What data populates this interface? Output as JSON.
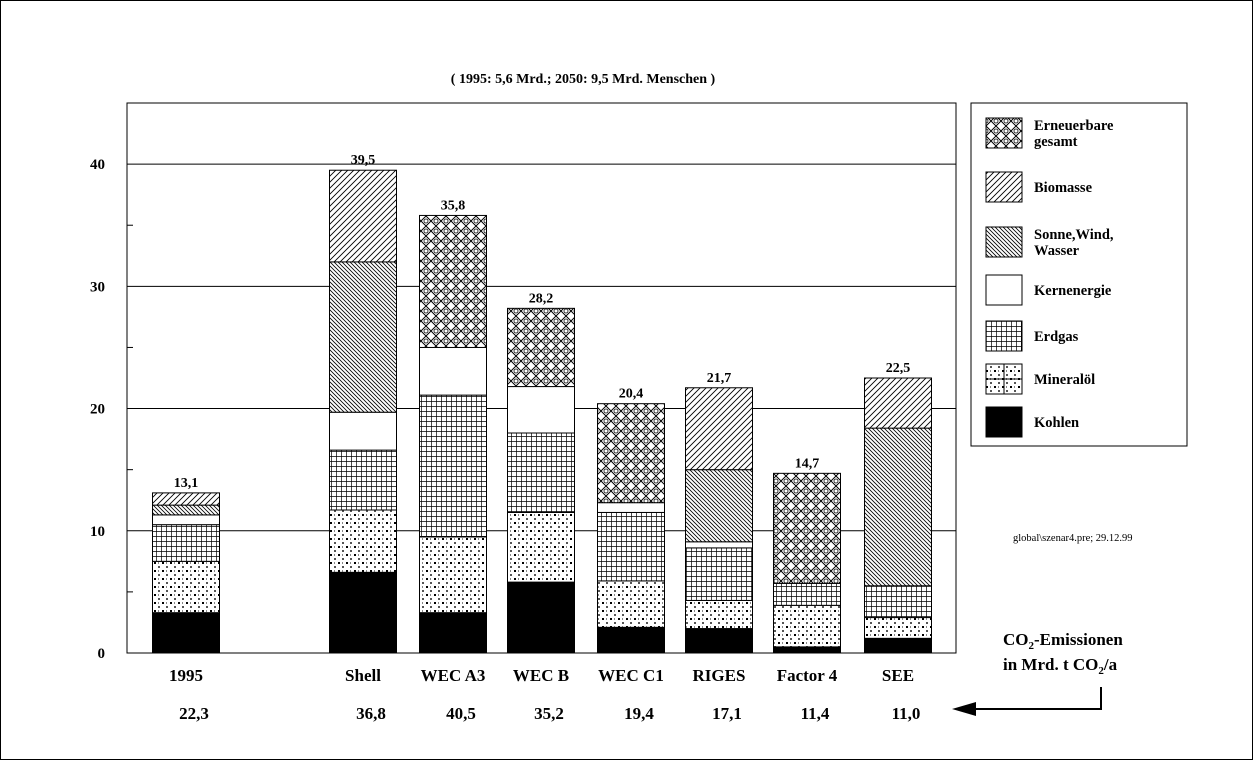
{
  "chart_data": {
    "type": "bar",
    "stacked": true,
    "subtitle": "( 1995: 5,6 Mrd.; 2050: 9,5 Mrd. Menschen )",
    "ylim": [
      0,
      45
    ],
    "yticks": [
      0,
      10,
      20,
      30,
      40
    ],
    "grid": true,
    "legend_position": "right",
    "categories": [
      "1995",
      "Shell",
      "WEC A3",
      "WEC B",
      "WEC C1",
      "RIGES",
      "Factor 4",
      "SEE"
    ],
    "totals": [
      "13,1",
      "39,5",
      "35,8",
      "28,2",
      "20,4",
      "21,7",
      "14,7",
      "22,5"
    ],
    "co2_values": [
      "22,3",
      "36,8",
      "40,5",
      "35,2",
      "19,4",
      "17,1",
      "11,4",
      "11,0"
    ],
    "series": [
      {
        "name": "Kohlen",
        "pattern": "solid",
        "values": [
          3.3,
          6.6,
          3.3,
          5.8,
          2.1,
          2.0,
          0.5,
          1.2
        ]
      },
      {
        "name": "Mineralöl",
        "pattern": "dots",
        "values": [
          4.2,
          5.1,
          6.2,
          5.7,
          3.8,
          2.3,
          3.4,
          1.7
        ]
      },
      {
        "name": "Erdgas",
        "pattern": "grid",
        "values": [
          3.0,
          4.9,
          11.6,
          6.5,
          5.6,
          4.3,
          1.8,
          2.6
        ]
      },
      {
        "name": "Kernenergie",
        "pattern": "white",
        "values": [
          0.8,
          3.1,
          3.9,
          3.8,
          0.8,
          0.5,
          0,
          0
        ]
      },
      {
        "name": "Sonne,Wind,\nWasser",
        "pattern": "diag-fine",
        "values": [
          0.8,
          12.3,
          0,
          0,
          0,
          5.9,
          0,
          12.9
        ]
      },
      {
        "name": "Biomasse",
        "pattern": "diag",
        "values": [
          1.0,
          7.5,
          0,
          0,
          0,
          6.7,
          0,
          4.1
        ]
      },
      {
        "name": "Erneuerbare\ngesamt",
        "pattern": "cross",
        "values": [
          0,
          0,
          10.8,
          6.4,
          8.1,
          0,
          9.0,
          0
        ]
      }
    ],
    "legend_order": [
      "Erneuerbare\ngesamt",
      "Biomasse",
      "Sonne,Wind,\nWasser",
      "Kernenergie",
      "Erdgas",
      "Mineralöl",
      "Kohlen"
    ],
    "annotation": "global\\szenar4.pre; 29.12.99",
    "co2_label_line1_prefix": "CO",
    "co2_label_line1_sub": "2",
    "co2_label_line1_suffix": "-Emissionen",
    "co2_label_line2_prefix": "in Mrd. t CO",
    "co2_label_line2_sub": "2",
    "co2_label_line2_suffix": "/a"
  }
}
